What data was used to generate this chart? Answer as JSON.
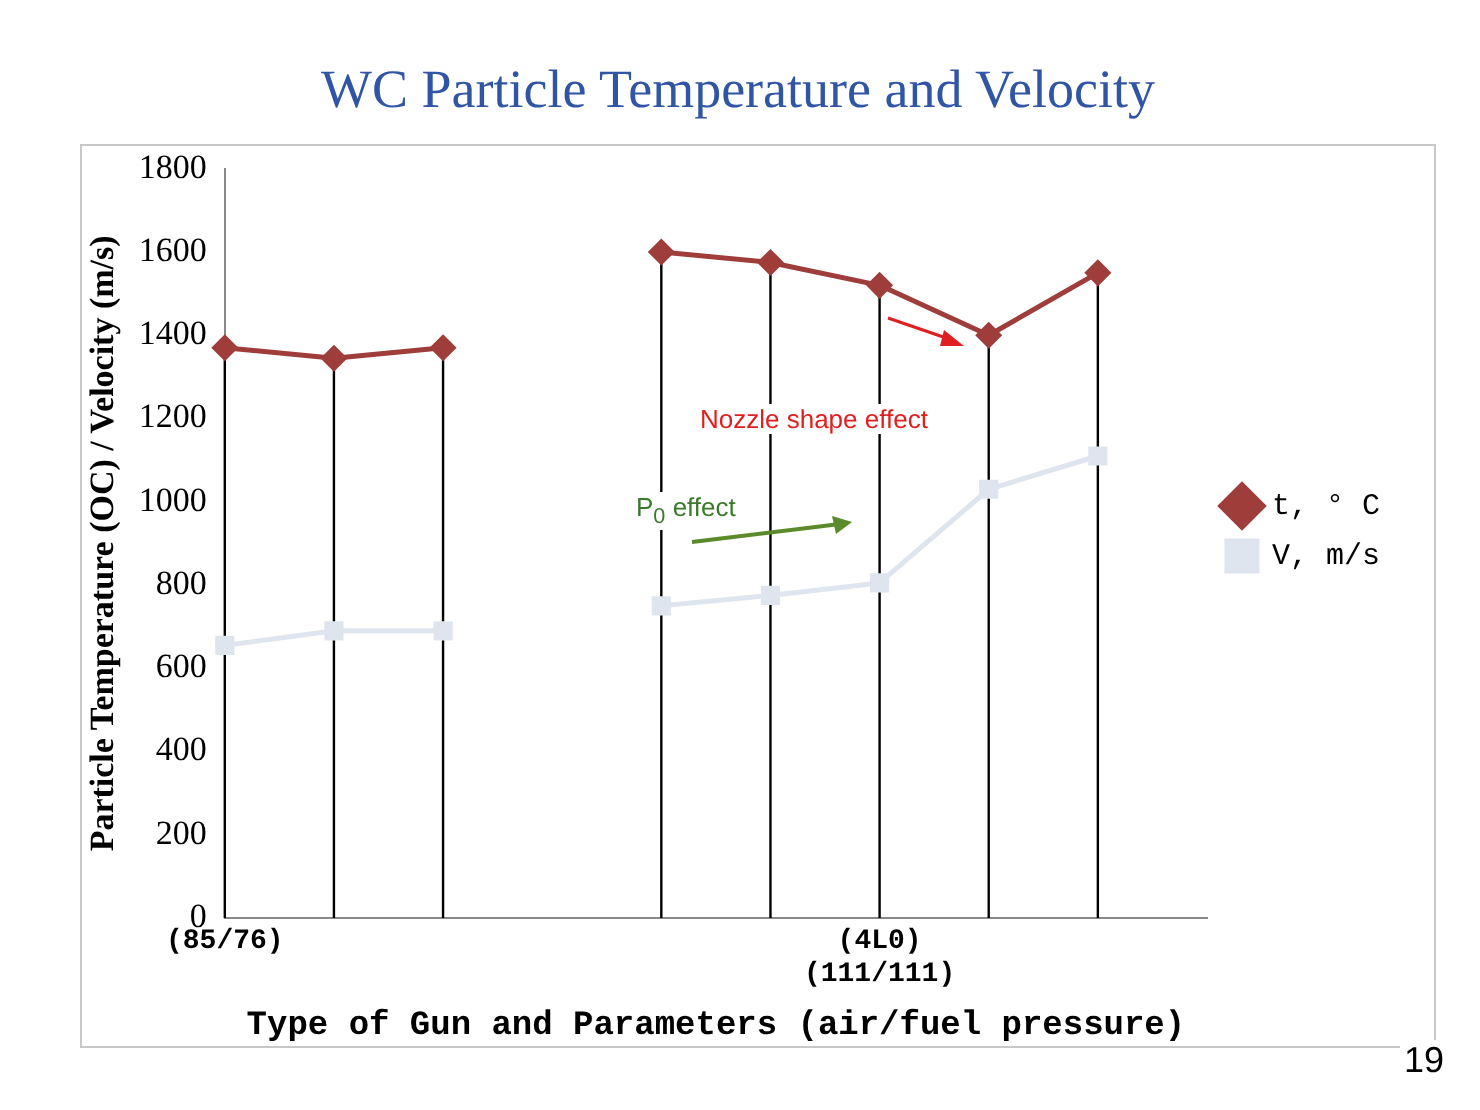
{
  "chart_data": {
    "type": "line",
    "title": "WC Particle Temperature and Velocity",
    "xlabel": "Type of Gun and Parameters (air/fuel pressure)",
    "ylabel": "Particle Temperature (OC) / Velocity (m/s)",
    "categories": [
      "(85/76)",
      null,
      null,
      null,
      null,
      null,
      "(4L0)\n(111/111)",
      null,
      null,
      null
    ],
    "series": [
      {
        "name": "t, ° C",
        "color": "#9e3d3a",
        "marker": "diamond",
        "values": [
          1370,
          1345,
          1370,
          null,
          1600,
          1575,
          1520,
          1400,
          1550,
          null
        ]
      },
      {
        "name": "V, m/s",
        "color": "#dfe5ee",
        "marker": "square",
        "values": [
          655,
          690,
          690,
          null,
          750,
          775,
          805,
          1030,
          1110,
          null
        ]
      }
    ],
    "ylim": [
      0,
      1800
    ],
    "yticks": [
      0,
      200,
      400,
      600,
      800,
      1000,
      1200,
      1400,
      1600,
      1800
    ],
    "grid": "x",
    "legend": "right",
    "annotations": [
      "Nozzle shape effect",
      "P$_{0}$ effect",
      "19"
    ]
  }
}
